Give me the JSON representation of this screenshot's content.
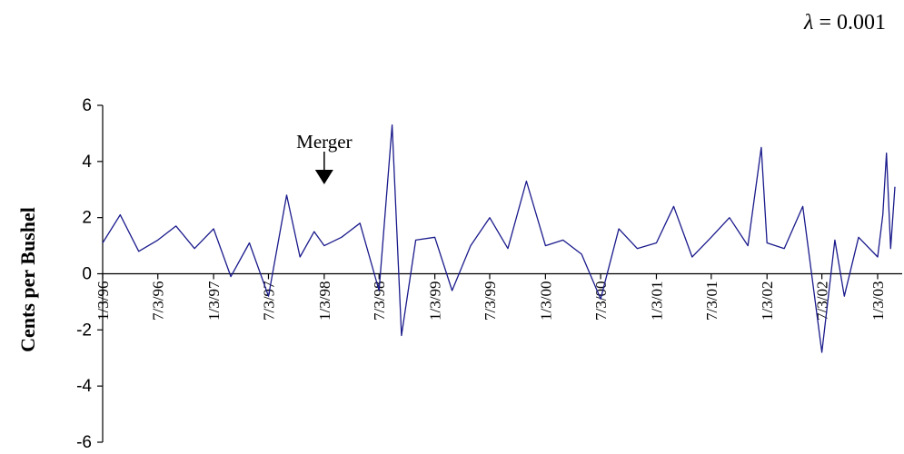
{
  "lambda_label": {
    "symbol": "λ",
    "text": " = 0.001"
  },
  "chart_data": {
    "type": "line",
    "title": "",
    "xlabel": "",
    "ylabel": "Cents per Bushel",
    "ylim": [
      -6,
      6
    ],
    "yticks": [
      6,
      4,
      2,
      0,
      -2,
      -4,
      -6
    ],
    "xlim": [
      "1996-01-03",
      "2003-03-01"
    ],
    "xtick_labels": [
      "1/3/96",
      "7/3/96",
      "1/3/97",
      "7/3/97",
      "1/3/98",
      "7/3/98",
      "1/3/99",
      "7/3/99",
      "1/3/00",
      "7/3/00",
      "1/3/01",
      "7/3/01",
      "1/3/02",
      "7/3/02",
      "1/3/03"
    ],
    "xtick_dates": [
      "1996-01-03",
      "1996-07-03",
      "1997-01-03",
      "1997-07-03",
      "1998-01-03",
      "1998-07-03",
      "1999-01-03",
      "1999-07-03",
      "2000-01-03",
      "2000-07-03",
      "2001-01-03",
      "2001-07-03",
      "2002-01-03",
      "2002-07-03",
      "2003-01-03"
    ],
    "grid": false,
    "line_color": "#1a1a8c",
    "annotation": {
      "text": "Merger",
      "x": "1998-01-03",
      "y": 2.0
    },
    "series": [
      {
        "x": [
          "1996-01-03",
          "1996-03-01",
          "1996-05-01",
          "1996-07-03",
          "1996-09-01",
          "1996-11-01",
          "1997-01-03",
          "1997-03-01",
          "1997-05-01",
          "1997-07-03",
          "1997-09-01",
          "1997-10-15",
          "1997-12-01",
          "1998-01-03",
          "1998-03-01",
          "1998-05-01",
          "1998-07-03",
          "1998-08-15",
          "1998-09-15",
          "1998-11-01",
          "1999-01-03",
          "1999-03-01",
          "1999-05-01",
          "1999-07-03",
          "1999-09-01",
          "1999-11-01",
          "2000-01-03",
          "2000-03-01",
          "2000-05-01",
          "2000-07-03",
          "2000-09-01",
          "2000-11-01",
          "2001-01-03",
          "2001-03-01",
          "2001-05-01",
          "2001-07-03",
          "2001-09-01",
          "2001-11-01",
          "2001-12-15",
          "2002-01-03",
          "2002-03-01",
          "2002-05-01",
          "2002-07-03",
          "2002-08-15",
          "2002-09-15",
          "2002-11-01",
          "2003-01-03",
          "2003-01-20",
          "2003-02-01",
          "2003-02-15",
          "2003-03-01"
        ],
        "values": [
          1.1,
          2.1,
          0.8,
          1.2,
          1.7,
          0.9,
          1.6,
          -0.1,
          1.1,
          -0.8,
          2.8,
          0.6,
          1.5,
          1.0,
          1.3,
          1.8,
          -0.6,
          5.3,
          -2.2,
          1.2,
          1.3,
          -0.6,
          1.0,
          2.0,
          0.9,
          3.3,
          1.0,
          1.2,
          0.7,
          -0.9,
          1.6,
          0.9,
          1.1,
          2.4,
          0.6,
          1.3,
          2.0,
          1.0,
          4.5,
          1.1,
          0.9,
          2.4,
          -2.8,
          1.2,
          -0.8,
          1.3,
          0.6,
          2.1,
          4.3,
          0.9,
          3.1
        ]
      }
    ]
  }
}
